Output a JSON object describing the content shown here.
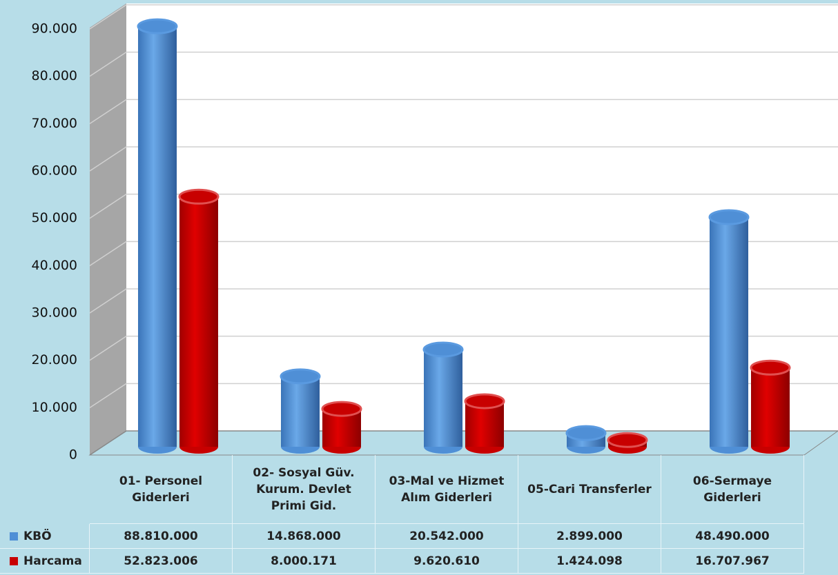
{
  "chart_data": {
    "type": "bar3d",
    "categories": [
      "01- Personel Giderleri",
      "02- Sosyal Güv. Kurum. Devlet Primi Gid.",
      "03-Mal ve Hizmet Alım Giderleri",
      "05-Cari Transferler",
      "06-Sermaye Giderleri"
    ],
    "series": [
      {
        "name": "KBÖ",
        "color": "#4f8fd6",
        "values": [
          88810,
          14868,
          20542,
          2899,
          48490
        ],
        "value_labels": [
          "88.810.000",
          "14.868.000",
          "20.542.000",
          "2.899.000",
          "48.490.000"
        ]
      },
      {
        "name": "Harcama",
        "color": "#c80000",
        "values": [
          52823.006,
          8000.171,
          9620.61,
          1424.098,
          16707.967
        ],
        "value_labels": [
          "52.823.006",
          "8.000.171",
          "9.620.610",
          "1.424.098",
          "16.707.967"
        ]
      }
    ],
    "ylim": [
      0,
      90000
    ],
    "yticks": [
      0,
      {
        "value": 10000,
        "label": "10.000"
      },
      {
        "value": 20000,
        "label": "20.000"
      },
      {
        "value": 30000,
        "label": "30.000"
      },
      {
        "value": 40000,
        "label": "40.000"
      },
      {
        "value": 50000,
        "label": "50.000"
      },
      {
        "value": 60000,
        "label": "60.000"
      },
      {
        "value": 70000,
        "label": "70.000"
      },
      {
        "value": 80000,
        "label": "80.000"
      },
      {
        "value": 90000,
        "label": "90.000"
      }
    ],
    "grid": true
  }
}
